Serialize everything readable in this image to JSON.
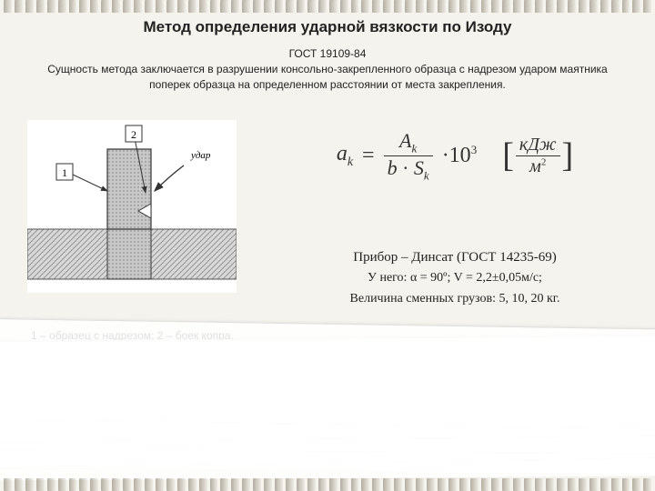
{
  "title": "Метод определения ударной вязкости по Изоду",
  "gost": "ГОСТ 19109-84",
  "description": "Сущность метода заключается в разрушении консольно-закрепленного образца с надрезом ударом маятника поперек образца на определенном расстоянии от места закрепления.",
  "diagram": {
    "label1": "1",
    "label2": "2",
    "impact_label": "удар",
    "specimen_fill": "#bdbdbd",
    "hatch_color": "#888",
    "clamp_fill": "#d0d0d0",
    "stroke": "#333"
  },
  "caption": "1 – образец с надрезом; 2 – боек копра.",
  "formula": {
    "lhs": "a",
    "lhs_sub": "k",
    "eq": "=",
    "num": "A",
    "num_sub": "k",
    "den_a": "b",
    "den_dot": "·",
    "den_b": "S",
    "den_b_sub": "k",
    "mult": "·10",
    "exp": "3",
    "unit_num": "кДж",
    "unit_den": "м",
    "unit_den_sup": "2"
  },
  "device": {
    "line1": "Прибор – Динсат (ГОСТ 14235-69)",
    "line2": "У него: α = 90º; V = 2,2±0,05м/с;",
    "line3": "Величина сменных грузов: 5, 10, 20 кг."
  },
  "colors": {
    "bg": "#f5f3ed",
    "text": "#222"
  }
}
